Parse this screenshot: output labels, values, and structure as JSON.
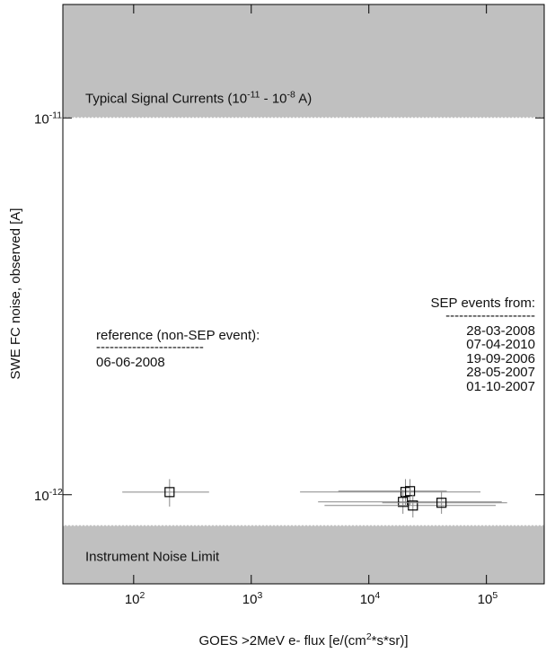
{
  "chart_data": {
    "type": "scatter",
    "xlabel": "GOES >2MeV e- flux [e/(cm^2*s*sr)]",
    "ylabel": "SWE FC noise, observed [A]",
    "xscale": "log",
    "yscale": "log",
    "xlim": [
      25,
      310000
    ],
    "ylim": [
      5.8e-13,
      2e-11
    ],
    "xticks": [
      {
        "value": 100,
        "label": "10^2"
      },
      {
        "value": 1000,
        "label": "10^3"
      },
      {
        "value": 10000,
        "label": "10^4"
      },
      {
        "value": 100000,
        "label": "10^5"
      }
    ],
    "yticks": [
      {
        "value": 1e-12,
        "label": "10^-12"
      },
      {
        "value": 1e-11,
        "label": "10^-11"
      }
    ],
    "bands": [
      {
        "label": "Typical Signal Currents (10^-11 - 10^-8 A)",
        "from": 1e-11,
        "to": 2e-11,
        "color": "#c0c0c0"
      },
      {
        "label": "Instrument Noise Limit",
        "from": 5.8e-13,
        "to": 8.3e-13,
        "color": "#c0c0c0"
      }
    ],
    "annotations": {
      "reference": [
        "reference (non-SEP event):",
        "------------------------",
        "06-06-2008"
      ],
      "sep": [
        "SEP events from:",
        "--------------------",
        "28-03-2008",
        "07-04-2010",
        "19-09-2006",
        "28-05-2007",
        "01-10-2007"
      ]
    },
    "series": [
      {
        "color": "#000000",
        "x": [
          202
        ],
        "values": [
          1.016e-12
        ],
        "x_lo": [
          80
        ],
        "x_hi": [
          438
        ],
        "y_lo": [
          9.3e-13
        ],
        "y_hi": [
          1.1e-12
        ]
      },
      {
        "color": "#000000",
        "x": [
          20500,
          22400,
          19500,
          23700,
          41500
        ],
        "values": [
          1.017e-12,
          1.022e-12,
          9.57e-13,
          9.36e-13,
          9.52e-13
        ],
        "x_lo": [
          2600,
          5500,
          3700,
          4200,
          13000
        ],
        "x_hi": [
          89000,
          46000,
          135000,
          120000,
          150000
        ],
        "y_lo": [
          9.4e-13,
          9.4e-13,
          8.9e-13,
          8.7e-13,
          8.9e-13
        ],
        "y_hi": [
          1.1e-12,
          1.1e-12,
          1.03e-12,
          1e-12,
          1.02e-12
        ]
      }
    ]
  }
}
